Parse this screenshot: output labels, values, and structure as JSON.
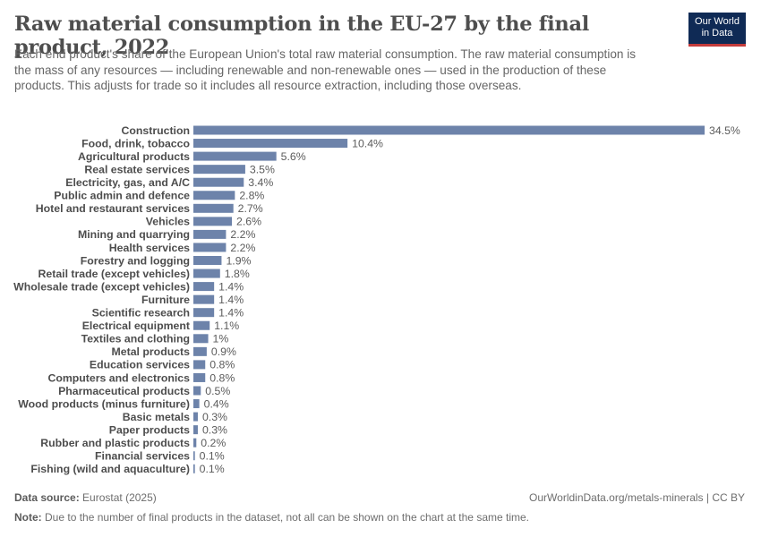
{
  "header": {
    "title": "Raw material consumption in the EU-27 by the final product, 2022",
    "subtitle": "Each end product's share of the European Union's total raw material consumption. The raw material consumption is the mass of any resources — including renewable and non-renewable ones — used in the production of these products. This adjusts for trade so it includes all resource extraction, including those overseas."
  },
  "logo": {
    "line1": "Our World",
    "line2": "in Data"
  },
  "footer": {
    "source_label": "Data source:",
    "source_text": "Eurostat (2025)",
    "url_text": "OurWorldinData.org/metals-minerals | CC BY",
    "note_label": "Note:",
    "note_text": "Due to the number of final products in the dataset, not all can be shown on the chart at the same time."
  },
  "colors": {
    "bar": "#6d83aa",
    "label": "#4d4d4d",
    "value": "#5b5b5b"
  },
  "chart_data": {
    "type": "bar",
    "orientation": "horizontal",
    "unit": "%",
    "categories": [
      "Construction",
      "Food, drink, tobacco",
      "Agricultural products",
      "Real estate services",
      "Electricity, gas, and A/C",
      "Public admin and defence",
      "Hotel and restaurant services",
      "Vehicles",
      "Mining and quarrying",
      "Health services",
      "Forestry and logging",
      "Retail trade (except vehicles)",
      "Wholesale trade (except vehicles)",
      "Furniture",
      "Scientific research",
      "Electrical equipment",
      "Textiles and clothing",
      "Metal products",
      "Education services",
      "Computers and electronics",
      "Pharmaceutical products",
      "Wood products (minus furniture)",
      "Basic metals",
      "Paper products",
      "Rubber and plastic products",
      "Financial services",
      "Fishing (wild and aquaculture)"
    ],
    "values": [
      34.5,
      10.4,
      5.6,
      3.5,
      3.4,
      2.8,
      2.7,
      2.6,
      2.2,
      2.2,
      1.9,
      1.8,
      1.4,
      1.4,
      1.4,
      1.1,
      1,
      0.9,
      0.8,
      0.8,
      0.5,
      0.4,
      0.3,
      0.3,
      0.2,
      0.1,
      0.1
    ],
    "value_labels": [
      "34.5%",
      "10.4%",
      "5.6%",
      "3.5%",
      "3.4%",
      "2.8%",
      "2.7%",
      "2.6%",
      "2.2%",
      "2.2%",
      "1.9%",
      "1.8%",
      "1.4%",
      "1.4%",
      "1.4%",
      "1.1%",
      "1%",
      "0.9%",
      "0.8%",
      "0.8%",
      "0.5%",
      "0.4%",
      "0.3%",
      "0.3%",
      "0.2%",
      "0.1%",
      "0.1%"
    ],
    "xlim": [
      0,
      34.5
    ],
    "grid": false,
    "legend": "none"
  }
}
